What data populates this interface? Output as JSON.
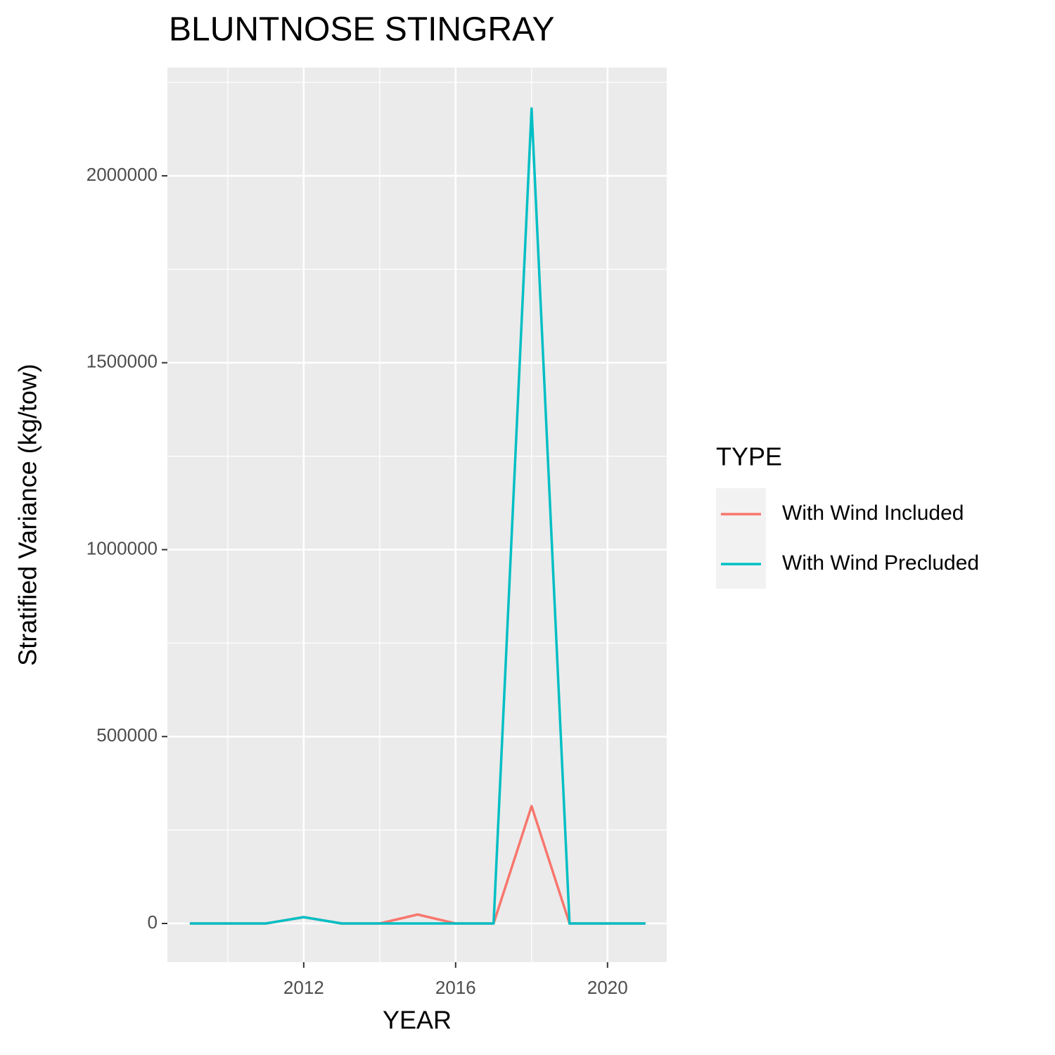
{
  "chart_data": {
    "type": "line",
    "title": "BLUNTNOSE STINGRAY",
    "x_label": "YEAR",
    "y_label": "Stratified Variance (kg/tow)",
    "x": [
      2009,
      2010,
      2011,
      2012,
      2013,
      2014,
      2015,
      2016,
      2017,
      2018,
      2019,
      2020,
      2021
    ],
    "series": [
      {
        "name": "With Wind Included",
        "color": "#f8766d",
        "values": [
          0,
          0,
          0,
          17000,
          0,
          0,
          24000,
          0,
          0,
          314000,
          0,
          0,
          0
        ]
      },
      {
        "name": "With Wind Precluded",
        "color": "#00bfc4",
        "values": [
          0,
          0,
          0,
          17000,
          0,
          0,
          0,
          0,
          0,
          2180000,
          0,
          0,
          0
        ]
      }
    ],
    "xlim": [
      2008.41,
      2021.56
    ],
    "xticks": [
      2012,
      2016,
      2020
    ],
    "ylim": [
      -103480,
      2289700
    ],
    "yticks": [
      0,
      500000,
      1000000,
      1500000,
      2000000
    ],
    "grid": true,
    "legend_title": "TYPE",
    "legend_position": "right"
  }
}
